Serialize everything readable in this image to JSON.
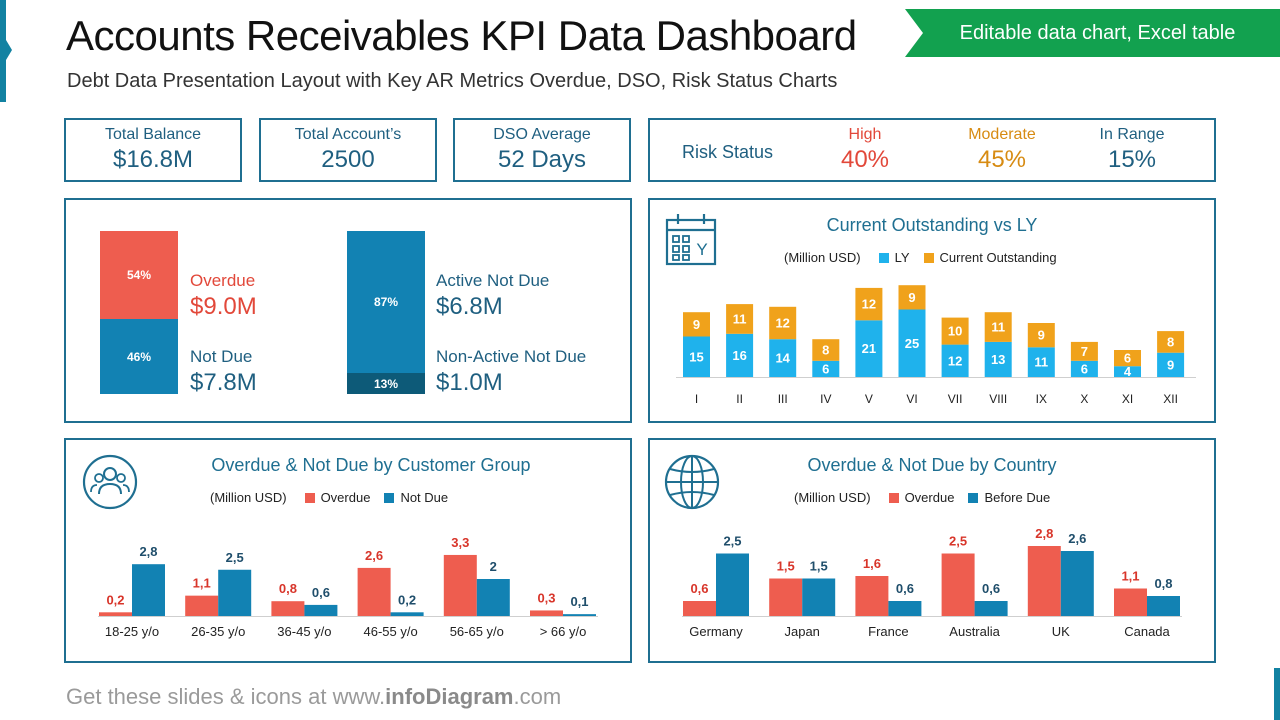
{
  "header": {
    "title": "Accounts Receivables KPI Data Dashboard",
    "subtitle": "Debt Data Presentation Layout with Key AR Metrics Overdue, DSO, Risk Status Charts",
    "banner": "Editable data chart, Excel table"
  },
  "colors": {
    "border": "#1f6f91",
    "red": "#ee5d4f",
    "blue": "#1282b3",
    "darkblue": "#0d5a78",
    "lightblue": "#1fb2ec",
    "orange": "#f0a21b",
    "moderate": "#d78b12",
    "green": "#12a14f"
  },
  "kpis": [
    {
      "label": "Total Balance",
      "value": "$16.8M"
    },
    {
      "label": "Total Account’s",
      "value": "2500"
    },
    {
      "label": "DSO Average",
      "value": "52 Days"
    }
  ],
  "risk": {
    "title": "Risk Status",
    "high": {
      "label": "High",
      "value": "40%"
    },
    "moderate": {
      "label": "Moderate",
      "value": "45%"
    },
    "in_range": {
      "label": "In Range",
      "value": "15%"
    }
  },
  "status": {
    "overdue": {
      "pct_text": "54%",
      "pct": 54,
      "label": "Overdue",
      "value": "$9.0M"
    },
    "not_due": {
      "pct_text": "46%",
      "pct": 46,
      "label": "Not Due",
      "value": "$7.8M"
    },
    "active": {
      "pct_text": "87%",
      "pct": 87,
      "label": "Active Not Due",
      "value": "$6.8M"
    },
    "non_active": {
      "pct_text": "13%",
      "pct": 13,
      "label": "Non-Active Not Due",
      "value": "$1.0M"
    }
  },
  "outstanding": {
    "title": "Current Outstanding vs LY",
    "unit": "(Million USD)",
    "legend_ly": "LY",
    "legend_current": "Current Outstanding",
    "icon_letter": "Y"
  },
  "customer_group": {
    "title": "Overdue & Not Due by Customer Group",
    "unit": "(Million USD)",
    "legend_overdue": "Overdue",
    "legend_notdue": "Not Due"
  },
  "country": {
    "title": "Overdue & Not Due by Country",
    "unit": "(Million USD)",
    "legend_overdue": "Overdue",
    "legend_before": "Before Due"
  },
  "footer": {
    "prefix": "Get these slides & icons at www.",
    "brand": "infoDiagram",
    "suffix": ".com"
  },
  "chart_data": [
    {
      "type": "bar",
      "title": "Current Outstanding vs LY",
      "stacked": true,
      "categories": [
        "I",
        "II",
        "III",
        "IV",
        "V",
        "VI",
        "VII",
        "VIII",
        "IX",
        "X",
        "XI",
        "XII"
      ],
      "series": [
        {
          "name": "LY",
          "values": [
            15,
            16,
            14,
            6,
            21,
            25,
            12,
            13,
            11,
            6,
            4,
            9
          ]
        },
        {
          "name": "Current Outstanding",
          "values": [
            9,
            11,
            12,
            8,
            12,
            9,
            10,
            11,
            9,
            7,
            6,
            8
          ]
        }
      ],
      "ylabel": "(Million USD)",
      "ylim": [
        0,
        34
      ]
    },
    {
      "type": "bar",
      "title": "Overdue & Not Due by Customer Group",
      "categories": [
        "18-25 y/o",
        "26-35 y/o",
        "36-45 y/o",
        "46-55 y/o",
        "56-65 y/o",
        "> 66 y/o"
      ],
      "series": [
        {
          "name": "Overdue",
          "values": [
            0.2,
            1.1,
            0.8,
            2.6,
            3.3,
            0.3
          ],
          "labels": [
            "0,2",
            "1,1",
            "0,8",
            "2,6",
            "3,3",
            "0,3"
          ]
        },
        {
          "name": "Not Due",
          "values": [
            2.8,
            2.5,
            0.6,
            0.2,
            2,
            0.1
          ],
          "labels": [
            "2,8",
            "2,5",
            "0,6",
            "0,2",
            "2",
            "0,1"
          ]
        }
      ],
      "ylabel": "(Million USD)",
      "ylim": [
        0,
        3.3
      ]
    },
    {
      "type": "bar",
      "title": "Overdue & Not Due by Country",
      "categories": [
        "Germany",
        "Japan",
        "France",
        "Australia",
        "UK",
        "Canada"
      ],
      "series": [
        {
          "name": "Overdue",
          "values": [
            0.6,
            1.5,
            1.6,
            2.5,
            2.8,
            1.1
          ],
          "labels": [
            "0,6",
            "1,5",
            "1,6",
            "2,5",
            "2,8",
            "1,1"
          ]
        },
        {
          "name": "Before Due",
          "values": [
            2.5,
            1.5,
            0.6,
            0.6,
            2.6,
            0.8
          ],
          "labels": [
            "2,5",
            "1,5",
            "0,6",
            "0,6",
            "2,6",
            "0,8"
          ]
        }
      ],
      "ylabel": "(Million USD)",
      "ylim": [
        0,
        2.8
      ]
    }
  ]
}
